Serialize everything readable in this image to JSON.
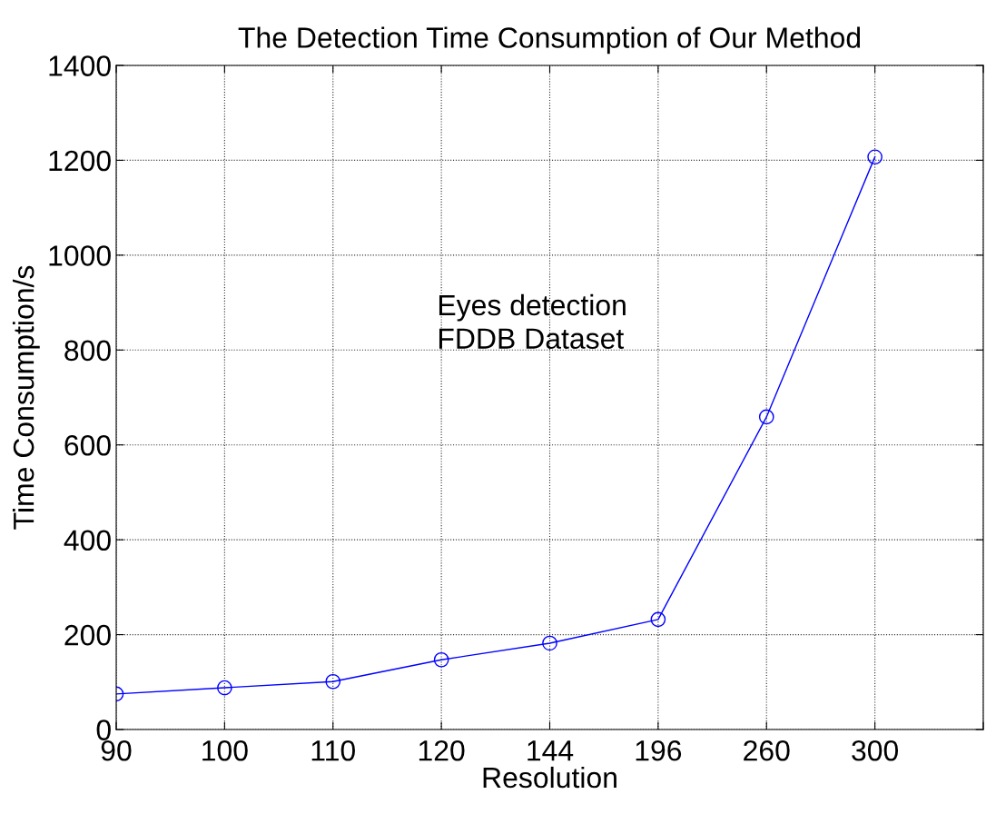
{
  "chart_data": {
    "type": "line",
    "title": "The Detection Time Consumption of Our Method",
    "xlabel": "Resolution",
    "ylabel": "Time Consumption/s",
    "categories": [
      "90",
      "100",
      "110",
      "120",
      "144",
      "196",
      "260",
      "300",
      null
    ],
    "series": [
      {
        "color": "#0000ff",
        "values": [
          75,
          88,
          101,
          147,
          182,
          232,
          659,
          1207,
          null
        ]
      }
    ],
    "ylim": [
      0,
      1400
    ],
    "yticks": [
      0,
      200,
      400,
      600,
      800,
      1000,
      1200,
      1400
    ],
    "annotations": [
      {
        "text": "Eyes detection\nFDDB Dataset"
      }
    ],
    "grid": true,
    "marker": "circle",
    "line_style": "solid"
  }
}
